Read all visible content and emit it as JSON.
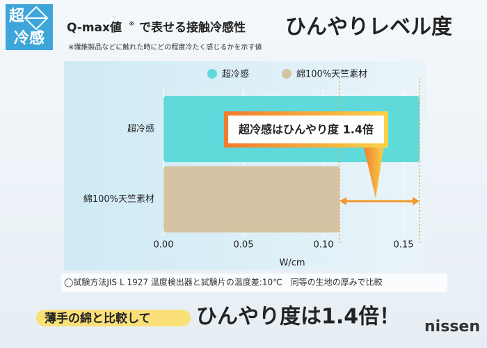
{
  "logo": {
    "top": "超",
    "bottom": "冷感"
  },
  "header": {
    "title": "Q-max値",
    "title_mark": "※",
    "title_rest": "で表せる接触冷感性",
    "headline": "ひんやりレベル度",
    "note": "※繊維製品などに触れた時にどの程度冷たく感じるかを示す値"
  },
  "chart_data": {
    "type": "bar",
    "orientation": "horizontal",
    "categories": [
      "超冷感",
      "綿100%天竺素材"
    ],
    "series": [
      {
        "name": "超冷感",
        "color": "#5fd9da",
        "values": [
          0.16,
          null
        ]
      },
      {
        "name": "綿100%天竺素材",
        "color": "#d5c3a3",
        "values": [
          null,
          0.11
        ]
      }
    ],
    "xlabel": "W/cm",
    "xlim": [
      0,
      0.165
    ],
    "xticks": [
      {
        "value": 0,
        "label": "0.00"
      },
      0.05,
      {
        "value": 0.1,
        "label": "0.10"
      },
      0.15
    ],
    "grid": true,
    "legend": "top",
    "annotation": "超冷感はひんやり度 1.4倍"
  },
  "footnote": "◯試験方法JIS L 1927 温度検出器と試験片の温度差:10℃　同等の生地の厚みで比較",
  "bottom": {
    "lead": "薄手の綿と比較して",
    "headline": "ひんやり度は1.4倍！"
  },
  "brand": "nissen"
}
